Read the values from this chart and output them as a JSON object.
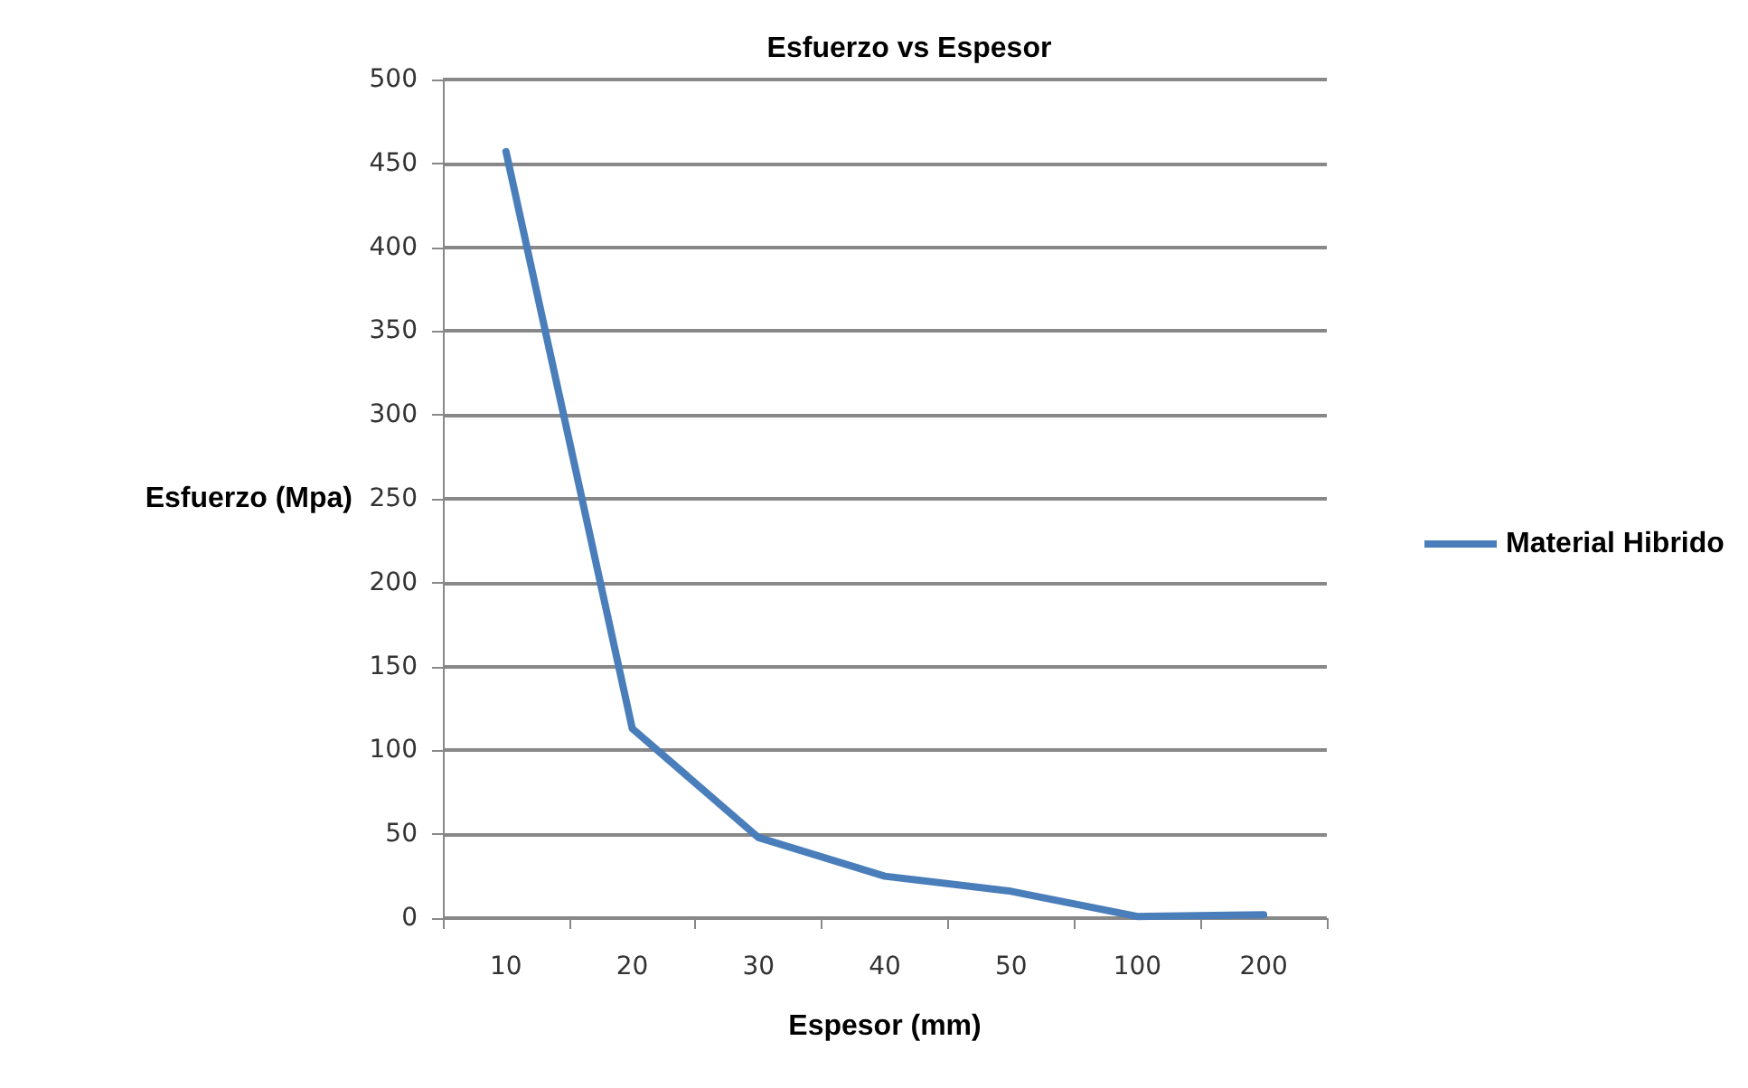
{
  "chart_data": {
    "type": "line",
    "title": "Esfuerzo vs Espesor",
    "xlabel": "Espesor (mm)",
    "ylabel": "Esfuerzo (Mpa)",
    "categories": [
      "10",
      "20",
      "30",
      "40",
      "50",
      "100",
      "200"
    ],
    "series": [
      {
        "name": "Material Hibrido",
        "color": "#4a7ebb",
        "values": [
          457,
          113,
          48,
          25,
          16,
          1,
          2
        ]
      }
    ],
    "ylim": [
      0,
      500
    ],
    "yticks": [
      0,
      50,
      100,
      150,
      200,
      250,
      300,
      350,
      400,
      450,
      500
    ],
    "grid": "y",
    "legend": "right",
    "marker": "none",
    "line_style": "solid"
  }
}
